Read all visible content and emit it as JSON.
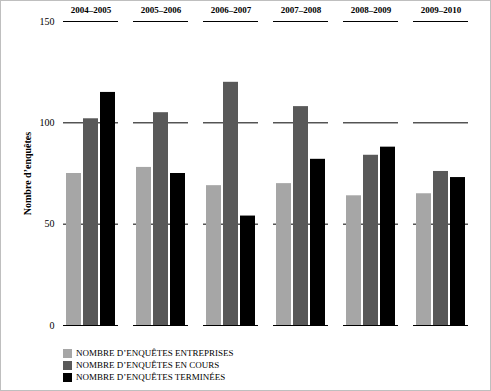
{
  "chart_data": {
    "type": "bar",
    "y_label": "Nombre d’enquêtes",
    "categories": [
      "2004–2005",
      "2005–2006",
      "2006–2007",
      "2007–2008",
      "2008–2009",
      "2009–2010"
    ],
    "series": [
      {
        "name": "NOMBRE D’ENQUÊTES ENTREPRISES",
        "color": "#a6a6a6",
        "values": [
          75,
          78,
          69,
          70,
          64,
          65
        ]
      },
      {
        "name": "NOMBRE D’ENQUÊTES EN COURS",
        "color": "#595959",
        "values": [
          102,
          105,
          120,
          108,
          84,
          76
        ]
      },
      {
        "name": "NOMBRE D’ENQUÊTES TERMINÉES",
        "color": "#000000",
        "values": [
          115,
          75,
          54,
          82,
          88,
          73
        ]
      }
    ],
    "ylim": [
      0,
      150
    ],
    "yticks": [
      0,
      50,
      100,
      150
    ],
    "grid": true,
    "legend": "bottom"
  }
}
